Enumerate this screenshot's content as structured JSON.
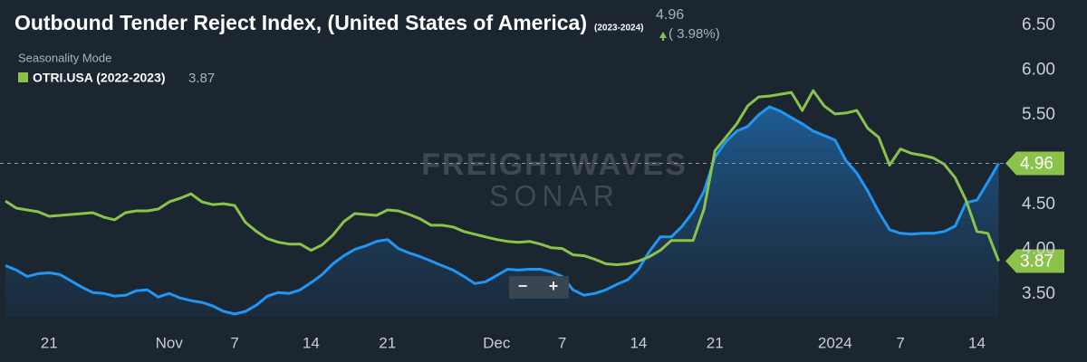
{
  "chart_data": {
    "type": "line",
    "title": "Outbound Tender Reject Index, (United States of America)",
    "subtitle": "(2023-2024)",
    "change": "( 3.98%)",
    "mode": "Seasonality Mode",
    "watermark": [
      "FREIGHTWAVES",
      "SONAR"
    ],
    "controls": [
      "−",
      "+"
    ],
    "categories": [
      null,
      null,
      null,
      null,
      "21",
      null,
      null,
      null,
      null,
      null,
      null,
      null,
      null,
      null,
      null,
      "Nov",
      null,
      null,
      null,
      null,
      null,
      "7",
      null,
      null,
      null,
      null,
      null,
      null,
      "14",
      null,
      null,
      null,
      null,
      null,
      null,
      "21",
      null,
      null,
      null,
      null,
      null,
      null,
      null,
      null,
      null,
      "Dec",
      null,
      null,
      null,
      null,
      null,
      "7",
      null,
      null,
      null,
      null,
      null,
      null,
      "14",
      null,
      null,
      null,
      null,
      null,
      null,
      "21",
      null,
      null,
      null,
      null,
      null,
      null,
      null,
      null,
      null,
      null,
      "2024",
      null,
      null,
      null,
      null,
      null,
      "7",
      null,
      null,
      null,
      null,
      null,
      null,
      "14",
      null,
      null
    ],
    "series": [
      {
        "name": "(2023-2024)",
        "color": "#2196f3",
        "area": true,
        "values": [
          3.82,
          3.77,
          3.7,
          3.73,
          3.74,
          3.72,
          3.65,
          3.58,
          3.52,
          3.51,
          3.48,
          3.49,
          3.54,
          3.55,
          3.47,
          3.51,
          3.46,
          3.43,
          3.41,
          3.37,
          3.31,
          3.28,
          3.31,
          3.38,
          3.48,
          3.52,
          3.51,
          3.55,
          3.63,
          3.72,
          3.84,
          3.93,
          4.0,
          4.04,
          4.09,
          4.11,
          4.01,
          3.96,
          3.92,
          3.87,
          3.82,
          3.77,
          3.7,
          3.62,
          3.64,
          3.71,
          3.78,
          3.77,
          3.78,
          3.78,
          3.75,
          3.7,
          3.55,
          3.49,
          3.51,
          3.55,
          3.61,
          3.66,
          3.78,
          3.98,
          4.14,
          4.14,
          4.26,
          4.42,
          4.65,
          5.03,
          5.2,
          5.32,
          5.37,
          5.5,
          5.59,
          5.54,
          5.47,
          5.4,
          5.32,
          5.27,
          5.22,
          4.99,
          4.85,
          4.65,
          4.42,
          4.22,
          4.18,
          4.17,
          4.18,
          4.18,
          4.2,
          4.26,
          4.52,
          4.55,
          4.75,
          4.96
        ]
      },
      {
        "name": "OTRI.USA (2022-2023)",
        "color": "#8bc34a",
        "area": false,
        "values": [
          4.54,
          4.46,
          4.44,
          4.42,
          4.37,
          4.38,
          4.39,
          4.4,
          4.41,
          4.36,
          4.33,
          4.41,
          4.43,
          4.43,
          4.45,
          4.53,
          4.57,
          4.62,
          4.53,
          4.5,
          4.51,
          4.49,
          4.3,
          4.2,
          4.12,
          4.08,
          4.06,
          4.06,
          3.99,
          4.05,
          4.16,
          4.31,
          4.4,
          4.39,
          4.38,
          4.44,
          4.43,
          4.39,
          4.34,
          4.27,
          4.27,
          4.25,
          4.2,
          4.17,
          4.14,
          4.11,
          4.09,
          4.08,
          4.09,
          4.06,
          4.02,
          4.01,
          3.94,
          3.93,
          3.89,
          3.84,
          3.83,
          3.84,
          3.87,
          3.92,
          3.99,
          4.1,
          4.1,
          4.1,
          4.45,
          5.1,
          5.25,
          5.4,
          5.6,
          5.7,
          5.71,
          5.73,
          5.75,
          5.55,
          5.77,
          5.6,
          5.51,
          5.52,
          5.55,
          5.35,
          5.25,
          4.94,
          5.12,
          5.07,
          5.05,
          5.02,
          4.95,
          4.8,
          4.55,
          4.2,
          4.18,
          3.87
        ]
      }
    ],
    "ylim": [
      3.25,
      6.78
    ],
    "yticks": [
      {
        "value": 3.5,
        "label": "3.50"
      },
      {
        "value": 4.0,
        "label": "4.00"
      },
      {
        "value": 4.5,
        "label": "4.50"
      },
      {
        "value": 5.5,
        "label": "5.50"
      },
      {
        "value": 6.0,
        "label": "6.00"
      },
      {
        "value": 6.5,
        "label": "6.50"
      }
    ],
    "grid": false
  }
}
